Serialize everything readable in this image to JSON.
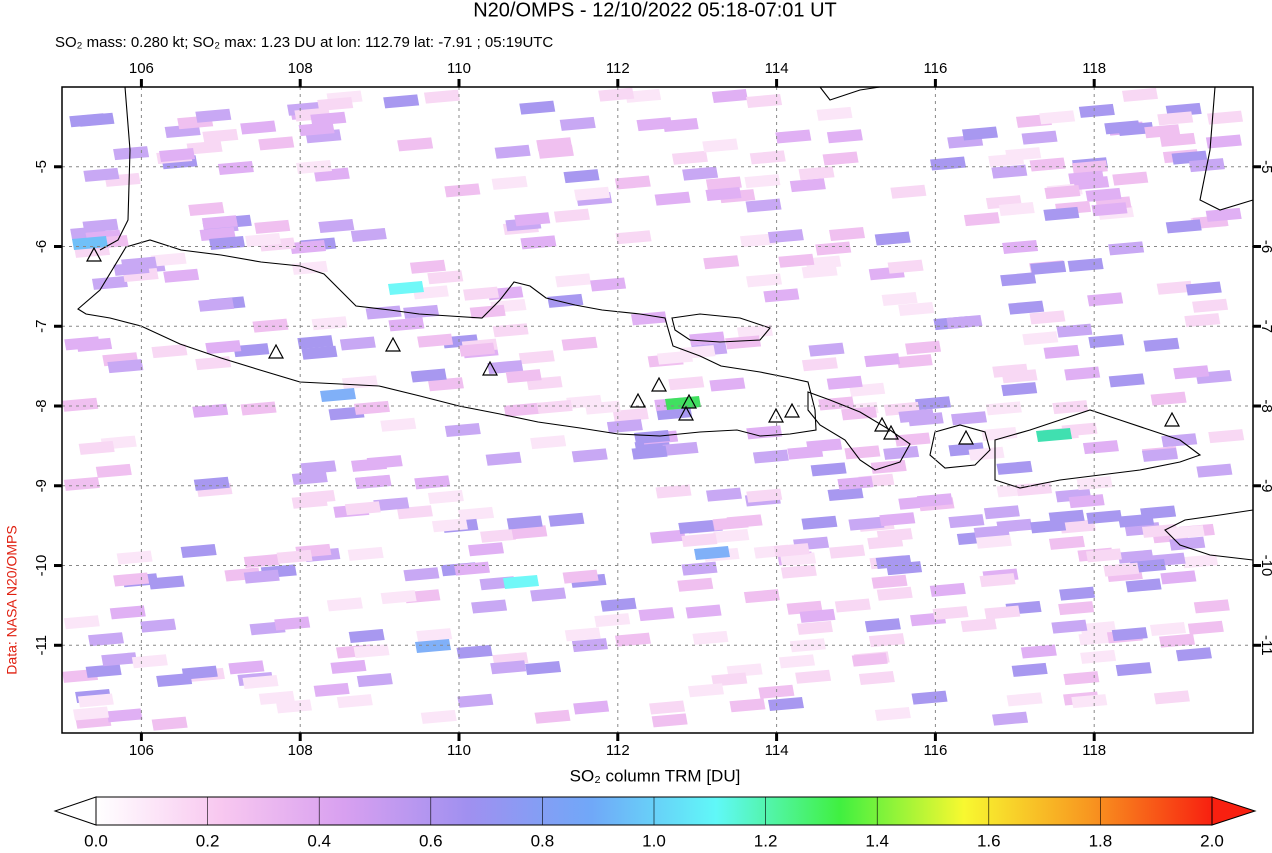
{
  "chart_data": {
    "type": "map",
    "title": "N20/OMPS - 12/10/2022 05:18-07:01 UT",
    "subtitle": "SO₂ mass: 0.280 kt; SO₂ max: 1.23 DU at lon: 112.79 lat: -7.91 ; 05:19UTC",
    "credit": "Data: NASA N20/OMPS",
    "xlim": [
      105,
      120
    ],
    "ylim": [
      -12.1,
      -4
    ],
    "xticks": [
      106,
      108,
      110,
      112,
      114,
      116,
      118
    ],
    "yticks": [
      -5,
      -6,
      -7,
      -8,
      -9,
      -10,
      -11
    ],
    "grid": true,
    "colorbar": {
      "label": "SO₂ column TRM [DU]",
      "lim": [
        0,
        2
      ],
      "ticks": [
        {
          "value": 0,
          "label": "0.0"
        },
        0.2,
        0.4,
        0.6,
        0.8,
        {
          "value": 1,
          "label": "1.0"
        },
        1.2,
        1.4,
        1.6,
        1.8,
        {
          "value": 2,
          "label": "2.0"
        }
      ],
      "colors": [
        "#ffffff",
        "#f8c8f0",
        "#d8a0f0",
        "#a090f0",
        "#70a8f8",
        "#60f8f8",
        "#40f040",
        "#f8f830",
        "#f89820",
        "#f82010"
      ]
    }
  }
}
